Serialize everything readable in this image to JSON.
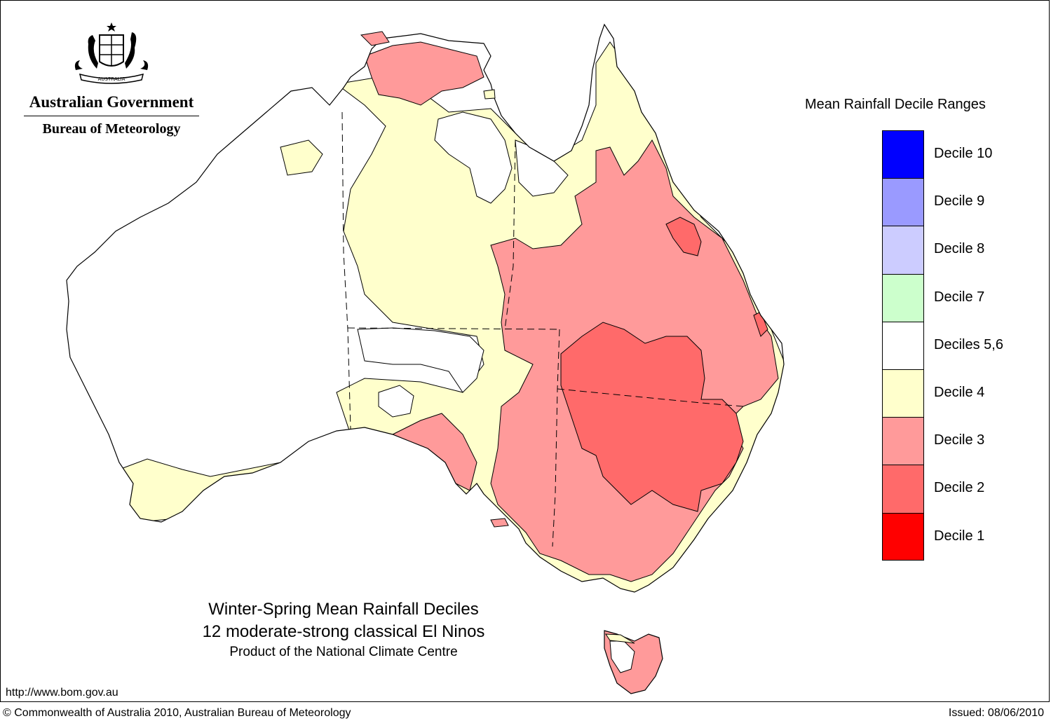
{
  "header": {
    "organisation": "Australian Government",
    "agency": "Bureau of Meteorology",
    "crest_motto": "AUSTRALIA"
  },
  "map": {
    "title": "Winter-Spring Mean Rainfall Deciles",
    "subtitle": "12 moderate-strong classical El Ninos",
    "product_line": "Product of the National Climate Centre",
    "region_colors": {
      "decile_2": "#ff6a6a",
      "decile_3": "#ff9a9a",
      "decile_4": "#ffffcc",
      "deciles_5_6": "#ffffff"
    }
  },
  "legend": {
    "title": "Mean Rainfall Decile Ranges",
    "items": [
      {
        "label": "Decile 10",
        "color": "#0000ff"
      },
      {
        "label": "Decile 9",
        "color": "#9a9aff"
      },
      {
        "label": "Decile 8",
        "color": "#ccccff"
      },
      {
        "label": "Decile 7",
        "color": "#ccffcc"
      },
      {
        "label": "Deciles 5,6",
        "color": "#ffffff"
      },
      {
        "label": "Decile 4",
        "color": "#ffffcc"
      },
      {
        "label": "Decile 3",
        "color": "#ff9a9a"
      },
      {
        "label": "Decile 2",
        "color": "#ff6a6a"
      },
      {
        "label": "Decile 1",
        "color": "#ff0000"
      }
    ]
  },
  "footer": {
    "url": "http://www.bom.gov.au",
    "copyright": "© Commonwealth of Australia 2010, Australian Bureau of Meteorology",
    "issued": "Issued: 08/06/2010"
  }
}
